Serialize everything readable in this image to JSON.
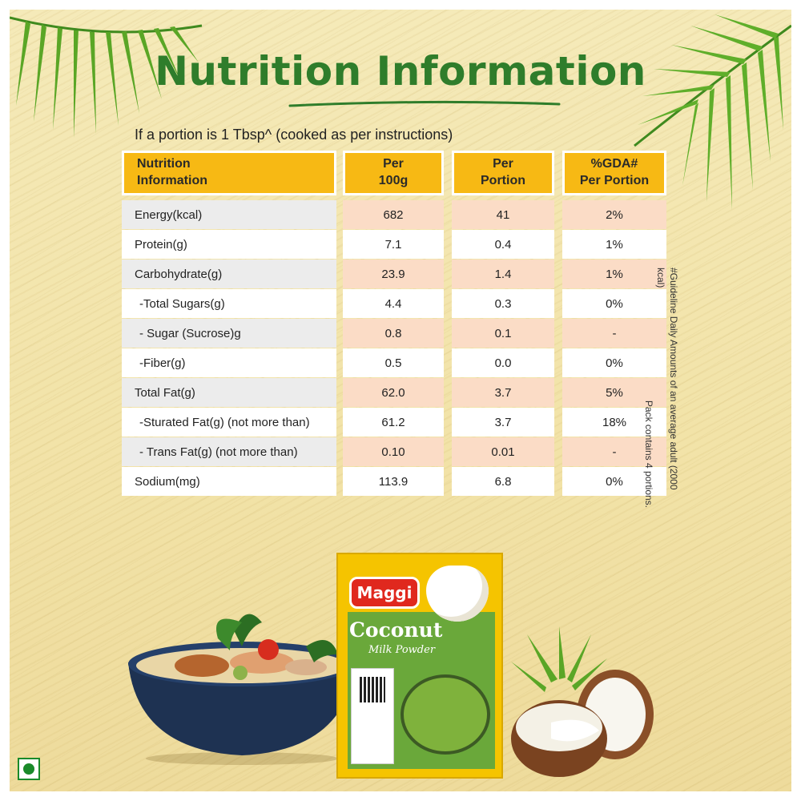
{
  "title": "Nutrition Information",
  "subtitle": "If a portion is 1 Tbsp^ (cooked as per instructions)",
  "table": {
    "headers": [
      "Nutrition\nInformation",
      "Per\n100g",
      "Per\nPortion",
      "%GDA#\nPer Portion"
    ],
    "rows": [
      [
        "Energy(kcal)",
        "682",
        "41",
        "2%"
      ],
      [
        "Protein(g)",
        "7.1",
        "0.4",
        "1%"
      ],
      [
        "Carbohydrate(g)",
        "23.9",
        "1.4",
        "1%"
      ],
      [
        "-Total Sugars(g)",
        "4.4",
        "0.3",
        "0%"
      ],
      [
        "- Sugar (Sucrose)g",
        "0.8",
        "0.1",
        "-"
      ],
      [
        "-Fiber(g)",
        "0.5",
        "0.0",
        "0%"
      ],
      [
        "Total Fat(g)",
        "62.0",
        "3.7",
        "5%"
      ],
      [
        "-Sturated Fat(g) (not more than)",
        "61.2",
        "3.7",
        "18%"
      ],
      [
        "- Trans Fat(g) (not more than)",
        "0.10",
        "0.01",
        "-"
      ],
      [
        "Sodium(mg)",
        "113.9",
        "6.8",
        "0%"
      ]
    ]
  },
  "footnote": {
    "line1": "#Guideline Daily Amounts of an average adult (2000 kcal)",
    "line2": "Pack contains 4 portions."
  },
  "product": {
    "brand": "Maggi",
    "name": "Coconut",
    "subname": "Milk Powder"
  },
  "colors": {
    "title_green": "#2f7d2b",
    "header_yellow": "#f7b914",
    "value_peach": "#fbdcc6",
    "pack_yellow": "#f5c400",
    "veg_green": "#1a8a2a"
  },
  "icons": [
    "palm-leaf-icon",
    "veg-mark-icon",
    "coconut-icon",
    "curry-bowl-icon"
  ]
}
